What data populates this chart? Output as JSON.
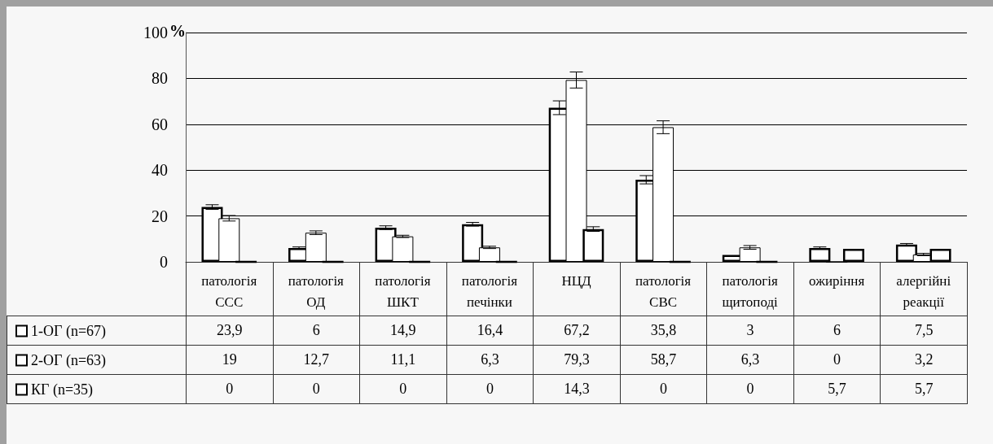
{
  "chart_data": {
    "type": "bar",
    "ylabel": "%",
    "categories": [
      "патологія ССС",
      "патологія ОД",
      "патологія ШКТ",
      "патологія печінки",
      "НЦД",
      "патологія СВС",
      "патологія щитоподі",
      "ожиріння",
      "алергійні реакції"
    ],
    "series": [
      {
        "name": "1-ОГ (n=67)",
        "color": "#000000",
        "values": [
          23.9,
          6,
          14.9,
          16.4,
          67.2,
          35.8,
          3,
          6,
          7.5
        ],
        "value_labels": [
          "23,9",
          "6",
          "14,9",
          "16,4",
          "67,2",
          "35,8",
          "3",
          "6",
          "7,5"
        ],
        "errors": [
          1,
          0.5,
          0.8,
          0.8,
          3,
          1.8,
          null,
          0.5,
          0.5
        ]
      },
      {
        "name": "2-ОГ (n=63)",
        "color": "#000000",
        "values": [
          19,
          12.7,
          11.1,
          6.3,
          79.3,
          58.7,
          6.3,
          0,
          3.2
        ],
        "value_labels": [
          "19",
          "12,7",
          "11,1",
          "6,3",
          "79,3",
          "58,7",
          "6,3",
          "0",
          "3,2"
        ],
        "errors": [
          1.2,
          0.8,
          0.5,
          0.5,
          3.5,
          2.8,
          0.8,
          null,
          0.5
        ]
      },
      {
        "name": "КГ (n=35)",
        "color": "#000000",
        "values": [
          0,
          0,
          0,
          0,
          14.3,
          0,
          0,
          5.7,
          5.7
        ],
        "value_labels": [
          "0",
          "0",
          "0",
          "0",
          "14,3",
          "0",
          "0",
          "5,7",
          "5,7"
        ],
        "errors": [
          null,
          null,
          null,
          null,
          1,
          null,
          null,
          null,
          null
        ]
      }
    ],
    "ylim": [
      0,
      100
    ],
    "yticks": [
      0,
      20,
      40,
      60,
      80,
      100
    ],
    "grid": "y",
    "legend": "bottom left"
  }
}
